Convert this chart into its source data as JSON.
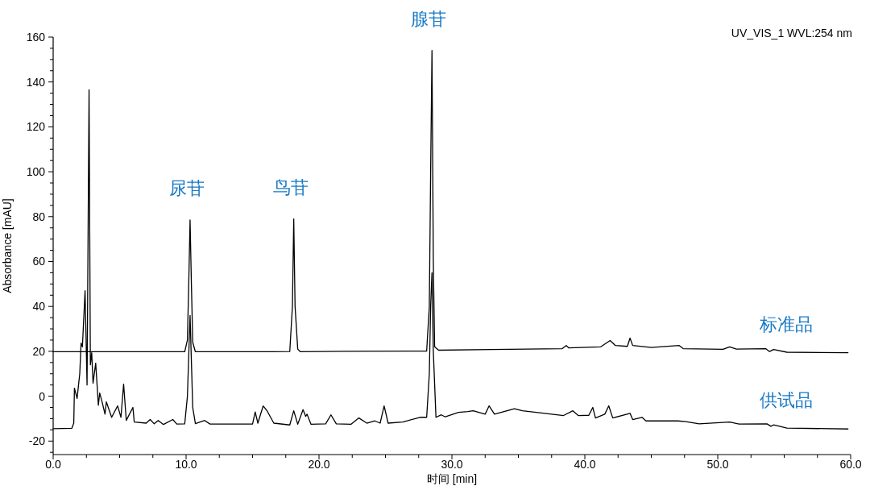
{
  "chart_data": {
    "type": "line",
    "xlabel": "时间 [min]",
    "ylabel": "Absorbance [mAU]",
    "xlim": [
      0,
      60
    ],
    "ylim": [
      -26,
      160
    ],
    "xticks": [
      {
        "value": 0,
        "label": "0.0"
      },
      {
        "value": 2.5,
        "label": null
      },
      {
        "value": 5,
        "label": null
      },
      {
        "value": 7.5,
        "label": null
      },
      {
        "value": 10,
        "label": "10.0"
      },
      {
        "value": 12.5,
        "label": null
      },
      {
        "value": 15,
        "label": null
      },
      {
        "value": 17.5,
        "label": null
      },
      {
        "value": 20,
        "label": "20.0"
      },
      {
        "value": 22.5,
        "label": null
      },
      {
        "value": 25,
        "label": null
      },
      {
        "value": 27.5,
        "label": null
      },
      {
        "value": 30,
        "label": "30.0"
      },
      {
        "value": 32.5,
        "label": null
      },
      {
        "value": 35,
        "label": null
      },
      {
        "value": 37.5,
        "label": null
      },
      {
        "value": 40,
        "label": "40.0"
      },
      {
        "value": 42.5,
        "label": null
      },
      {
        "value": 45,
        "label": null
      },
      {
        "value": 47.5,
        "label": null
      },
      {
        "value": 50,
        "label": "50.0"
      },
      {
        "value": 52.5,
        "label": null
      },
      {
        "value": 55,
        "label": null
      },
      {
        "value": 57.5,
        "label": null
      },
      {
        "value": 60,
        "label": "60.0"
      }
    ],
    "yticks": [
      {
        "value": -25,
        "label": null
      },
      -20,
      {
        "value": -15,
        "label": null
      },
      {
        "value": -10,
        "label": null
      },
      {
        "value": -5,
        "label": null
      },
      0,
      {
        "value": 5,
        "label": null
      },
      {
        "value": 10,
        "label": null
      },
      {
        "value": 15,
        "label": null
      },
      20,
      {
        "value": 25,
        "label": null
      },
      {
        "value": 30,
        "label": null
      },
      {
        "value": 35,
        "label": null
      },
      40,
      {
        "value": 45,
        "label": null
      },
      {
        "value": 50,
        "label": null
      },
      {
        "value": 55,
        "label": null
      },
      60,
      {
        "value": 65,
        "label": null
      },
      {
        "value": 70,
        "label": null
      },
      {
        "value": 75,
        "label": null
      },
      80,
      {
        "value": 85,
        "label": null
      },
      {
        "value": 90,
        "label": null
      },
      {
        "value": 95,
        "label": null
      },
      100,
      {
        "value": 105,
        "label": null
      },
      {
        "value": 110,
        "label": null
      },
      {
        "value": 115,
        "label": null
      },
      120,
      {
        "value": 125,
        "label": null
      },
      {
        "value": 130,
        "label": null
      },
      {
        "value": 135,
        "label": null
      },
      140,
      {
        "value": 145,
        "label": null
      },
      {
        "value": 150,
        "label": null
      },
      {
        "value": 155,
        "label": null
      },
      160
    ],
    "grid": false,
    "marker": "none",
    "line_style": "solid",
    "series": [
      {
        "name": "标准品",
        "color": "#000000",
        "x": [
          0,
          9.9,
          10.1,
          10.2,
          10.3,
          10.4,
          10.5,
          10.7,
          16.5,
          17.8,
          18.0,
          18.1,
          18.2,
          18.4,
          18.6,
          22,
          28.1,
          28.3,
          28.4,
          28.5,
          28.6,
          28.7,
          29,
          33,
          38.3,
          38.6,
          38.8,
          41.2,
          41.9,
          42.3,
          43.2,
          43.4,
          43.6,
          45.0,
          47.1,
          47.4,
          50.4,
          50.9,
          51.4,
          53.6,
          53.9,
          54.2,
          55.2,
          59.8
        ],
        "values": [
          19.8,
          19.8,
          25,
          50,
          78.5,
          50,
          24,
          19.8,
          19.8,
          19.9,
          40,
          79,
          40,
          21,
          19.8,
          20,
          20.1,
          40,
          100,
          154,
          60,
          22,
          20.5,
          20.8,
          21.2,
          22.6,
          21.5,
          22,
          24.8,
          22.6,
          22.2,
          25.9,
          22.6,
          21.7,
          22.6,
          21.2,
          20.9,
          22,
          21,
          21.2,
          19.9,
          20.8,
          19.6,
          19.4
        ]
      },
      {
        "name": "供试品",
        "color": "#000000",
        "x": [
          0,
          1.4,
          1.55,
          1.6,
          1.8,
          2.0,
          2.1,
          2.2,
          2.4,
          2.55,
          2.7,
          2.8,
          2.9,
          3.0,
          3.2,
          3.4,
          3.5,
          3.7,
          3.9,
          4.0,
          4.4,
          4.85,
          5.1,
          5.3,
          5.5,
          6.0,
          6.1,
          7.0,
          7.3,
          7.6,
          7.9,
          8.3,
          9.0,
          9.3,
          9.9,
          10.1,
          10.3,
          10.5,
          10.7,
          11.4,
          11.8,
          15.0,
          15.2,
          15.4,
          15.8,
          16.1,
          16.6,
          17.8,
          18.1,
          18.4,
          18.8,
          19.0,
          19.1,
          19.4,
          20.5,
          20.9,
          21.3,
          22.4,
          23.0,
          23.6,
          24.2,
          24.6,
          24.9,
          25.2,
          26.3,
          27.6,
          28.1,
          28.3,
          28.4,
          28.5,
          28.6,
          28.8,
          29.2,
          29.5,
          30.5,
          31.2,
          31.6,
          32.5,
          32.8,
          33.2,
          34.7,
          35.3,
          37.5,
          38.4,
          39.1,
          39.5,
          40.3,
          40.6,
          40.8,
          41.5,
          41.8,
          42.1,
          43.4,
          43.6,
          44.3,
          44.6,
          47.0,
          47.6,
          48.6,
          50.9,
          51.6,
          53.7,
          54.0,
          54.2,
          55.2,
          59.8
        ],
        "values": [
          -14.5,
          -14.3,
          -12,
          3.6,
          -1,
          10,
          23.7,
          22,
          47,
          5,
          136.5,
          14,
          19.4,
          5.8,
          14.7,
          -4,
          1.4,
          -3,
          -8,
          -2.5,
          -9.4,
          -4.3,
          -9.4,
          5.4,
          -10.8,
          -5,
          -11.5,
          -12,
          -10.4,
          -12.3,
          -10.8,
          -12.6,
          -10.4,
          -12.4,
          -12.3,
          0,
          36,
          -5,
          -12.2,
          -10.8,
          -12.4,
          -12.4,
          -7,
          -12,
          -4.3,
          -6.6,
          -12,
          -12.8,
          -6.5,
          -12.5,
          -6,
          -9,
          -8,
          -12.5,
          -12.3,
          -8.3,
          -12.3,
          -12.5,
          -9.7,
          -12,
          -11,
          -12,
          -4.3,
          -12,
          -11.5,
          -9.4,
          -9.4,
          10,
          40,
          55,
          20,
          -9.4,
          -8.3,
          -9.2,
          -7.2,
          -6.8,
          -6.5,
          -8,
          -4.3,
          -8,
          -5.6,
          -6.5,
          -8,
          -8.6,
          -6.5,
          -8.6,
          -8.5,
          -5,
          -9.7,
          -8,
          -4.3,
          -9.7,
          -7.6,
          -10.4,
          -9.4,
          -11,
          -11,
          -11.3,
          -12.3,
          -11.5,
          -12.4,
          -12.3,
          -13.4,
          -12.8,
          -14.2,
          -14.6
        ]
      }
    ],
    "annotations": [
      {
        "text": "尿苷",
        "x": 10.3,
        "y": 78.5
      },
      {
        "text": "鸟苷",
        "x": 18.1,
        "y": 79
      },
      {
        "text": "腺苷",
        "x": 28.5,
        "y": 154
      },
      "UV_VIS_1 WVL:254 nm"
    ]
  }
}
